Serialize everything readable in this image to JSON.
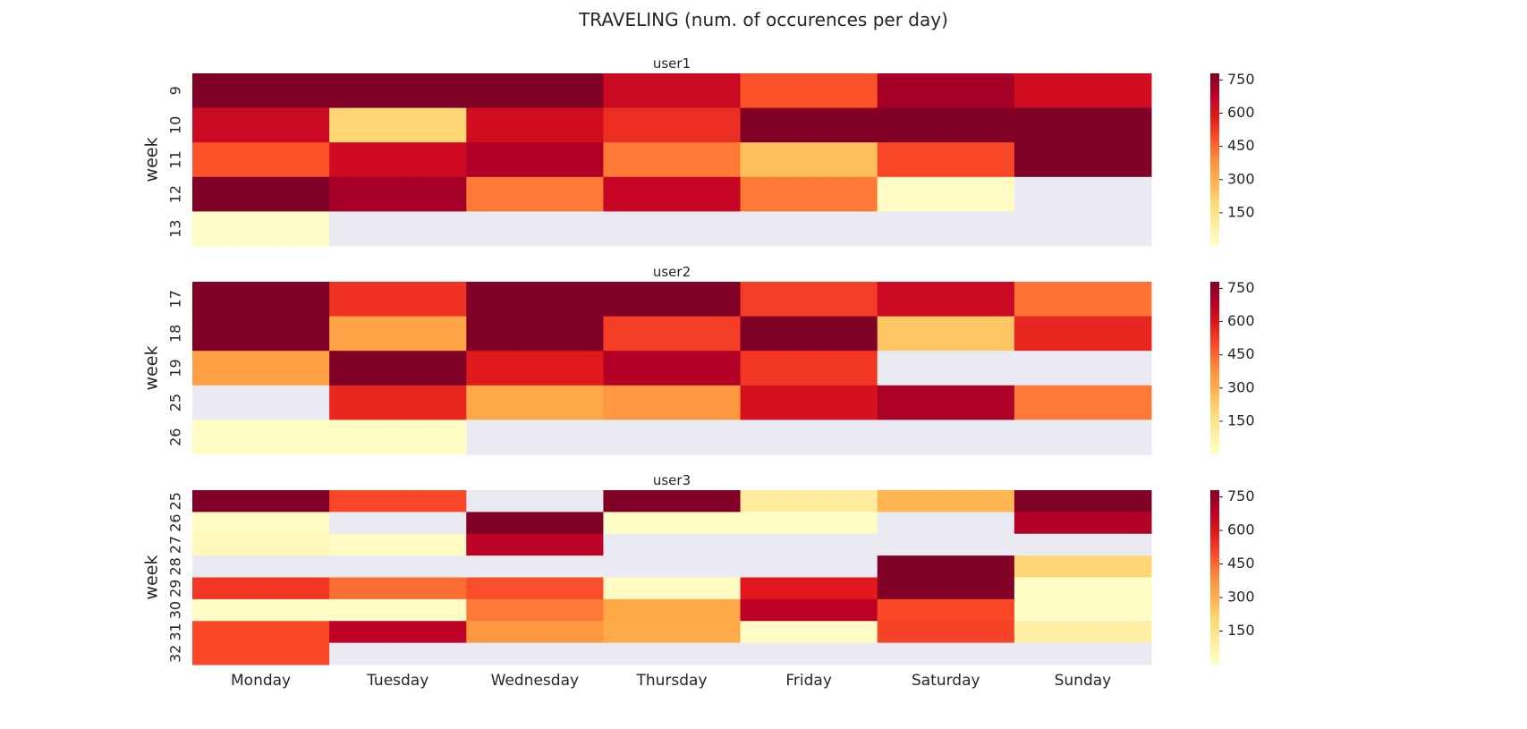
{
  "figure": {
    "title": "TRAVELING (num. of occurences per day)"
  },
  "chart_data": [
    {
      "type": "heatmap",
      "title": "user1",
      "xlabel": "",
      "ylabel": "week",
      "x": [
        "Monday",
        "Tuesday",
        "Wednesday",
        "Thursday",
        "Friday",
        "Saturday",
        "Sunday"
      ],
      "y": [
        "9",
        "10",
        "11",
        "12",
        "13"
      ],
      "values": [
        [
          800,
          800,
          800,
          650,
          480,
          720,
          630
        ],
        [
          650,
          200,
          630,
          550,
          800,
          800,
          800
        ],
        [
          480,
          640,
          700,
          420,
          260,
          500,
          800
        ],
        [
          800,
          720,
          420,
          660,
          420,
          20,
          null
        ],
        [
          10,
          null,
          null,
          null,
          null,
          null,
          null
        ]
      ],
      "colorbar_ticks": [
        150,
        300,
        450,
        600,
        750
      ],
      "vmin": 0,
      "vmax": 780,
      "show_xticklabels": false
    },
    {
      "type": "heatmap",
      "title": "user2",
      "xlabel": "",
      "ylabel": "week",
      "x": [
        "Monday",
        "Tuesday",
        "Wednesday",
        "Thursday",
        "Friday",
        "Saturday",
        "Sunday"
      ],
      "y": [
        "17",
        "18",
        "19",
        "25",
        "26"
      ],
      "values": [
        [
          800,
          540,
          800,
          800,
          520,
          650,
          430
        ],
        [
          800,
          330,
          800,
          520,
          800,
          240,
          560
        ],
        [
          340,
          800,
          590,
          700,
          530,
          null,
          null
        ],
        [
          null,
          560,
          320,
          360,
          620,
          710,
          420
        ],
        [
          15,
          15,
          null,
          null,
          null,
          null,
          null
        ]
      ],
      "colorbar_ticks": [
        150,
        300,
        450,
        600,
        750
      ],
      "vmin": 0,
      "vmax": 780,
      "show_xticklabels": false
    },
    {
      "type": "heatmap",
      "title": "user3",
      "xlabel": "",
      "ylabel": "week",
      "x": [
        "Monday",
        "Tuesday",
        "Wednesday",
        "Thursday",
        "Friday",
        "Saturday",
        "Sunday"
      ],
      "y": [
        "25",
        "26",
        "27",
        "28",
        "29",
        "30",
        "31",
        "32"
      ],
      "values": [
        [
          800,
          500,
          null,
          800,
          100,
          280,
          800
        ],
        [
          20,
          null,
          800,
          15,
          15,
          null,
          700
        ],
        [
          40,
          20,
          680,
          null,
          null,
          null,
          null
        ],
        [
          null,
          null,
          null,
          null,
          null,
          800,
          200
        ],
        [
          530,
          440,
          490,
          20,
          590,
          800,
          15
        ],
        [
          15,
          15,
          420,
          320,
          680,
          500,
          15
        ],
        [
          500,
          680,
          360,
          310,
          15,
          510,
          90
        ],
        [
          500,
          null,
          null,
          null,
          null,
          null,
          null
        ]
      ],
      "colorbar_ticks": [
        150,
        300,
        450,
        600,
        750
      ],
      "vmin": 0,
      "vmax": 780,
      "show_xticklabels": true
    }
  ],
  "colors": {
    "missing": "#eaeaf2",
    "text": "#262626",
    "colormap": [
      "#ffffcc",
      "#ffeda0",
      "#fed976",
      "#feb24c",
      "#fd8d3c",
      "#fc4e2a",
      "#e31a1c",
      "#bd0026",
      "#800026"
    ]
  }
}
